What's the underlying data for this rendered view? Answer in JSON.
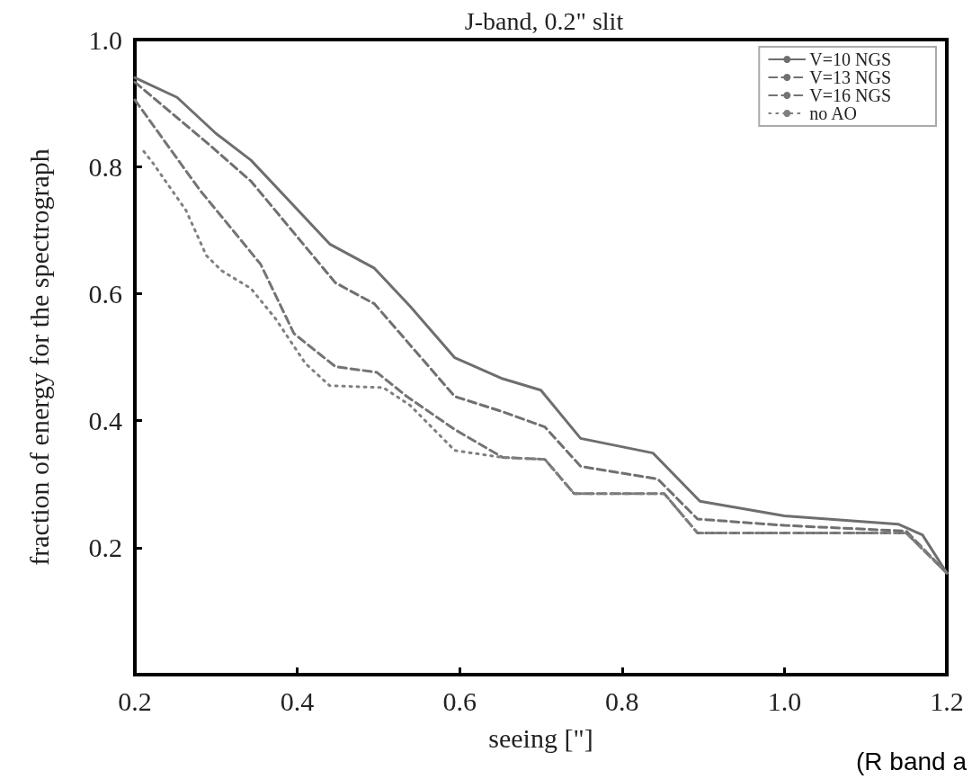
{
  "chart_data": {
    "type": "line",
    "title": "J-band, 0.2\" slit",
    "xlabel": "seeing [\"]",
    "ylabel": "fraction of energy for the spectrograph",
    "annotations": [
      "(R band a"
    ],
    "xlim": [
      0.2,
      1.2
    ],
    "xticks": [
      0.2,
      0.4,
      0.6,
      0.8,
      {
        "value": 1.0,
        "label": "1.0"
      },
      1.2
    ],
    "ylim": [
      0,
      1
    ],
    "yticks": [
      0.2,
      0.4,
      0.6,
      0.8,
      {
        "value": 1.0,
        "label": "1.0"
      }
    ],
    "grid": false,
    "legend": "top right",
    "marker": "none",
    "series": [
      {
        "name": "V=10 NGS",
        "color": "#6e6e6e",
        "line_style": "solid",
        "x": [
          0.2,
          0.252,
          0.3,
          0.343,
          0.388,
          0.44,
          0.495,
          0.539,
          0.594,
          0.653,
          0.7,
          0.749,
          0.838,
          0.896,
          1.0,
          1.14,
          1.17,
          1.2
        ],
        "values": [
          0.94,
          0.909,
          0.852,
          0.81,
          0.749,
          0.678,
          0.64,
          0.58,
          0.499,
          0.466,
          0.448,
          0.372,
          0.349,
          0.273,
          0.25,
          0.237,
          0.22,
          0.16
        ]
      },
      {
        "name": "V=13 NGS",
        "color": "#707070",
        "line_style": "dashed",
        "x": [
          0.2,
          0.292,
          0.343,
          0.447,
          0.495,
          0.594,
          0.653,
          0.705,
          0.749,
          0.844,
          0.893,
          1.0,
          1.15,
          1.2
        ],
        "values": [
          0.933,
          0.834,
          0.777,
          0.617,
          0.584,
          0.438,
          0.414,
          0.39,
          0.328,
          0.308,
          0.245,
          0.235,
          0.226,
          0.16
        ]
      },
      {
        "name": "V=16 NGS",
        "color": "#747474",
        "line_style": "dashed",
        "x": [
          0.2,
          0.28,
          0.325,
          0.355,
          0.396,
          0.447,
          0.498,
          0.535,
          0.594,
          0.653,
          0.705,
          0.741,
          0.852,
          0.893,
          1.15,
          1.2
        ],
        "values": [
          0.905,
          0.763,
          0.693,
          0.646,
          0.537,
          0.485,
          0.476,
          0.438,
          0.386,
          0.342,
          0.339,
          0.285,
          0.285,
          0.223,
          0.223,
          0.16
        ]
      },
      {
        "name": "no AO",
        "color": "#808080",
        "line_style": "dotted",
        "x": [
          0.211,
          0.222,
          0.263,
          0.288,
          0.307,
          0.343,
          0.373,
          0.41,
          0.44,
          0.506,
          0.539,
          0.594,
          0.653,
          0.705,
          0.741,
          0.852,
          0.893,
          1.15,
          1.2
        ],
        "values": [
          0.824,
          0.806,
          0.731,
          0.66,
          0.636,
          0.608,
          0.561,
          0.49,
          0.455,
          0.452,
          0.424,
          0.353,
          0.342,
          0.339,
          0.285,
          0.285,
          0.223,
          0.223,
          0.16
        ]
      }
    ]
  }
}
